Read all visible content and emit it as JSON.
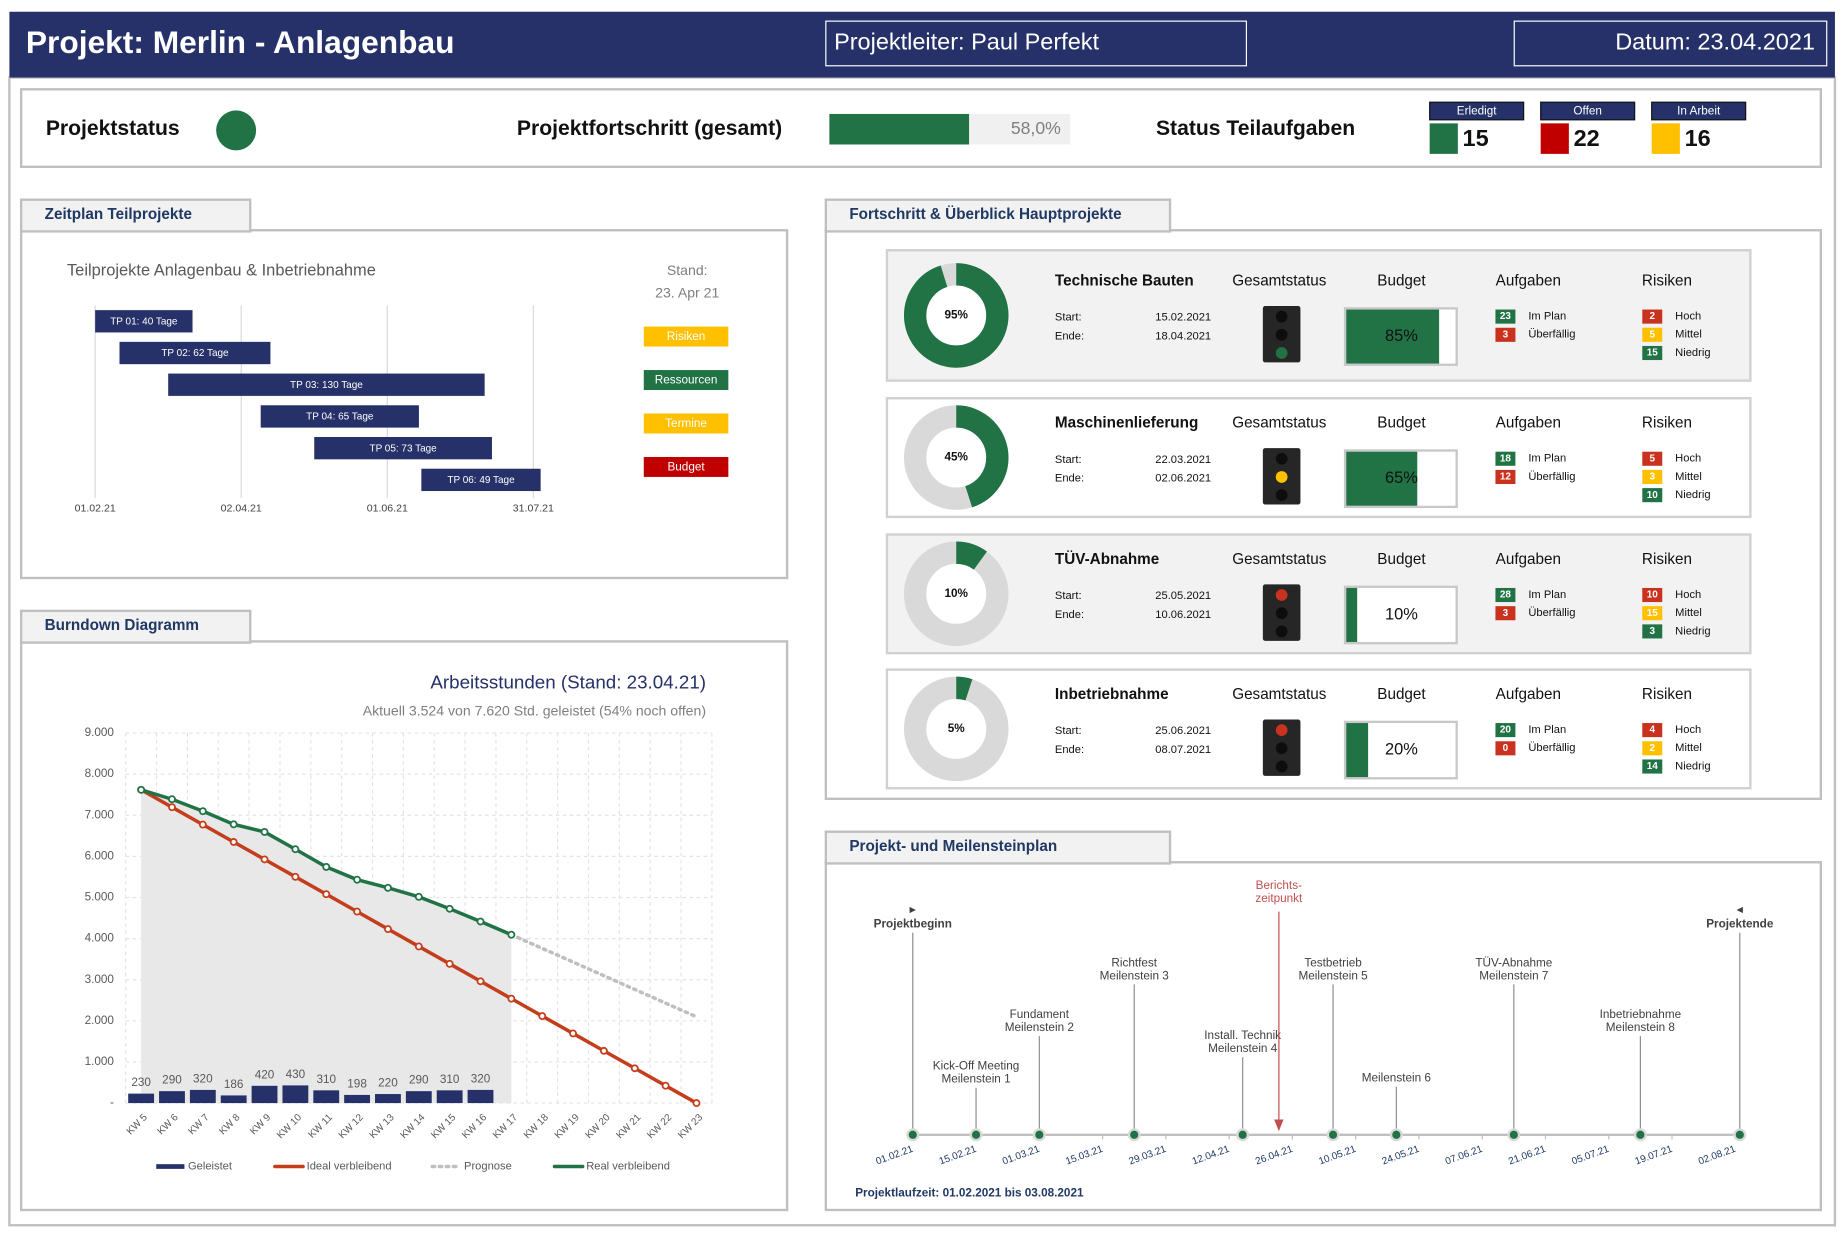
{
  "header": {
    "title": "Projekt: Merlin - Anlagenbau",
    "leader": "Projektleiter: Paul Perfekt",
    "date": "Datum: 23.04.2021"
  },
  "status": {
    "label": "Projektstatus",
    "color": "#217346",
    "progress_label": "Projektfortschritt (gesamt)",
    "progress": {
      "value": 58.0,
      "label": "58,0%"
    },
    "progress_color": "#217346",
    "tasks_label": "Status Teilaufgaben",
    "tasks": [
      {
        "name": "Erledigt",
        "value": 15,
        "color": "#217346"
      },
      {
        "name": "Offen",
        "value": 22,
        "color": "#c00000"
      },
      {
        "name": "In Arbeit",
        "value": 16,
        "color": "#ffc000"
      }
    ]
  },
  "panels": {
    "gantt": "Zeitplan Teilprojekte",
    "burndown": "Burndown Diagramm",
    "projects": "Fortschritt & Überblick Hauptprojekte",
    "milestones": "Projekt- und Meilensteinplan"
  },
  "chart_data": [
    {
      "type": "gantt",
      "title": "Teilprojekte Anlagenbau & Inbetriebnahme",
      "stand_label": "Stand:",
      "stand": "23. Apr 21",
      "categories": [
        "TP 01: 40 Tage",
        "TP 02: 62 Tage",
        "TP 03: 130 Tage",
        "TP 04: 65 Tage",
        "TP 05: 73 Tage",
        "TP 06: 49 Tage"
      ],
      "start": [
        0,
        10,
        30,
        68,
        90,
        134
      ],
      "duration": [
        40,
        62,
        130,
        65,
        73,
        49
      ],
      "color": "#253168",
      "xlim": [
        0,
        180
      ],
      "xticks": [
        {
          "value": 0,
          "label": "01.02.21"
        },
        {
          "value": 60,
          "label": "02.04.21"
        },
        {
          "value": 120,
          "label": "01.06.21"
        },
        {
          "value": 180,
          "label": "31.07.21"
        }
      ],
      "grid": true,
      "tags": [
        {
          "name": "Risiken",
          "color": "#ffc000"
        },
        {
          "name": "Ressourcen",
          "color": "#217346"
        },
        {
          "name": "Termine",
          "color": "#ffc000"
        },
        {
          "name": "Budget",
          "color": "#c00000"
        }
      ]
    },
    {
      "type": "burndown",
      "title": "Arbeitsstunden (Stand: 23.04.21)",
      "subtitle": "Aktuell 3.524 von 7.620 Std. geleistet (54% noch offen)",
      "categories": [
        "KW 5",
        "KW 6",
        "KW 7",
        "KW 8",
        "KW 9",
        "KW 10",
        "KW 11",
        "KW 12",
        "KW 13",
        "KW 14",
        "KW 15",
        "KW 16",
        "KW 17",
        "KW 18",
        "KW 19",
        "KW 20",
        "KW 21",
        "KW 22",
        "KW 23"
      ],
      "ylim": [
        0,
        9000
      ],
      "yticks": [
        {
          "value": 0,
          "label": "-"
        },
        {
          "value": 1000,
          "label": "1.000"
        },
        {
          "value": 2000,
          "label": "2.000"
        },
        {
          "value": 3000,
          "label": "3.000"
        },
        {
          "value": 4000,
          "label": "4.000"
        },
        {
          "value": 5000,
          "label": "5.000"
        },
        {
          "value": 6000,
          "label": "6.000"
        },
        {
          "value": 7000,
          "label": "7.000"
        },
        {
          "value": 8000,
          "label": "8.000"
        },
        {
          "value": 9000,
          "label": "9.000"
        }
      ],
      "grid": true,
      "series": [
        {
          "name": "Geleistet",
          "type": "bar",
          "color": "#253168",
          "values": [
            230,
            290,
            320,
            186,
            420,
            430,
            310,
            198,
            220,
            290,
            310,
            320,
            null,
            null,
            null,
            null,
            null,
            null,
            null
          ]
        },
        {
          "name": "Ideal verbleibend",
          "type": "line",
          "color": "#c43e1c",
          "values": [
            7620,
            7197,
            6773,
            6350,
            5927,
            5503,
            5080,
            4657,
            4233,
            3810,
            3387,
            2963,
            2540,
            2117,
            1693,
            1270,
            847,
            423,
            0
          ]
        },
        {
          "name": "Prognose",
          "type": "dotted",
          "color": "#bfbfbf",
          "values": [
            null,
            null,
            null,
            null,
            null,
            null,
            null,
            null,
            null,
            null,
            null,
            null,
            4096,
            3763,
            3430,
            3097,
            2764,
            2431,
            2098
          ]
        },
        {
          "name": "Real verbleibend",
          "type": "line",
          "color": "#217346",
          "area_color": "#e8e8e8",
          "values": [
            7620,
            7390,
            7100,
            6780,
            6594,
            6174,
            5744,
            5434,
            5236,
            5016,
            4726,
            4416,
            4096,
            null,
            null,
            null,
            null,
            null,
            null
          ]
        }
      ]
    }
  ],
  "projects": {
    "columns": {
      "status": "Gesamtstatus",
      "budget": "Budget",
      "tasks": "Aufgaben",
      "risks": "Risiken"
    },
    "start_label": "Start:",
    "end_label": "Ende:",
    "task_labels": [
      "Im Plan",
      "Überfällig"
    ],
    "task_colors": [
      "#217346",
      "#c8321e"
    ],
    "risk_labels": [
      "Hoch",
      "Mittel",
      "Niedrig"
    ],
    "risk_colors": [
      "#c8321e",
      "#ffc000",
      "#217346"
    ],
    "lamp_colors": [
      "#c8321e",
      "#ffc000",
      "#217346"
    ],
    "color": "#217346",
    "items": [
      {
        "name": "Technische Bauten",
        "progress": {
          "value": 95,
          "label": "95%"
        },
        "start": "15.02.2021",
        "end": "18.04.2021",
        "status": "#217346",
        "budget": {
          "value": 85,
          "label": "85%"
        },
        "tasks": [
          23,
          3
        ],
        "risks": [
          2,
          5,
          15
        ]
      },
      {
        "name": "Maschinenlieferung",
        "progress": {
          "value": 45,
          "label": "45%"
        },
        "start": "22.03.2021",
        "end": "02.06.2021",
        "status": "#ffc000",
        "budget": {
          "value": 65,
          "label": "65%"
        },
        "tasks": [
          18,
          12
        ],
        "risks": [
          5,
          3,
          10
        ]
      },
      {
        "name": "TÜV-Abnahme",
        "progress": {
          "value": 10,
          "label": "10%"
        },
        "start": "25.05.2021",
        "end": "10.06.2021",
        "status": "#c8321e",
        "budget": {
          "value": 10,
          "label": "10%"
        },
        "tasks": [
          28,
          3
        ],
        "risks": [
          10,
          15,
          3
        ]
      },
      {
        "name": "Inbetriebnahme",
        "progress": {
          "value": 5,
          "label": "5%"
        },
        "start": "25.06.2021",
        "end": "08.07.2021",
        "status": "#c8321e",
        "budget": {
          "value": 20,
          "label": "20%"
        },
        "tasks": [
          20,
          0
        ],
        "risks": [
          4,
          2,
          14
        ]
      }
    ]
  },
  "milestones": {
    "xlim": [
      0,
      183
    ],
    "xticks": [
      {
        "value": 0,
        "label": "01.02.21"
      },
      {
        "value": 14,
        "label": "15.02.21"
      },
      {
        "value": 28,
        "label": "01.03.21"
      },
      {
        "value": 42,
        "label": "15.03.21"
      },
      {
        "value": 56,
        "label": "29.03.21"
      },
      {
        "value": 70,
        "label": "12.04.21"
      },
      {
        "value": 84,
        "label": "26.04.21"
      },
      {
        "value": 98,
        "label": "10.05.21"
      },
      {
        "value": 112,
        "label": "24.05.21"
      },
      {
        "value": 126,
        "label": "07.06.21"
      },
      {
        "value": 140,
        "label": "21.06.21"
      },
      {
        "value": 154,
        "label": "05.07.21"
      },
      {
        "value": 168,
        "label": "19.07.21"
      },
      {
        "value": 182,
        "label": "02.08.21"
      }
    ],
    "items": [
      {
        "label": [
          "Projektbeginn"
        ],
        "day": 0
      },
      {
        "label": [
          "Kick-Off Meeting",
          "Meilenstein 1"
        ],
        "day": 14
      },
      {
        "label": [
          "Fundament",
          "Meilenstein 2"
        ],
        "day": 28
      },
      {
        "label": [
          "Richtfest",
          "Meilenstein 3"
        ],
        "day": 49
      },
      {
        "label": [
          "Install. Technik",
          "Meilenstein 4"
        ],
        "day": 73
      },
      {
        "label": [
          "Testbetrieb",
          "Meilenstein 5"
        ],
        "day": 93
      },
      {
        "label": [
          "Meilenstein 6"
        ],
        "day": 107
      },
      {
        "label": [
          "TÜV-Abnahme",
          "Meilenstein 7"
        ],
        "day": 133
      },
      {
        "label": [
          "Inbetriebnahme",
          "Meilenstein 8"
        ],
        "day": 161
      },
      {
        "label": [
          "Projektende"
        ],
        "day": 183
      }
    ],
    "report": {
      "label": [
        "Berichts-",
        "zeitpunkt"
      ],
      "day": 81,
      "color": "#c0504d"
    },
    "footer": "Projektlaufzeit: 01.02.2021 bis 03.08.2021"
  }
}
